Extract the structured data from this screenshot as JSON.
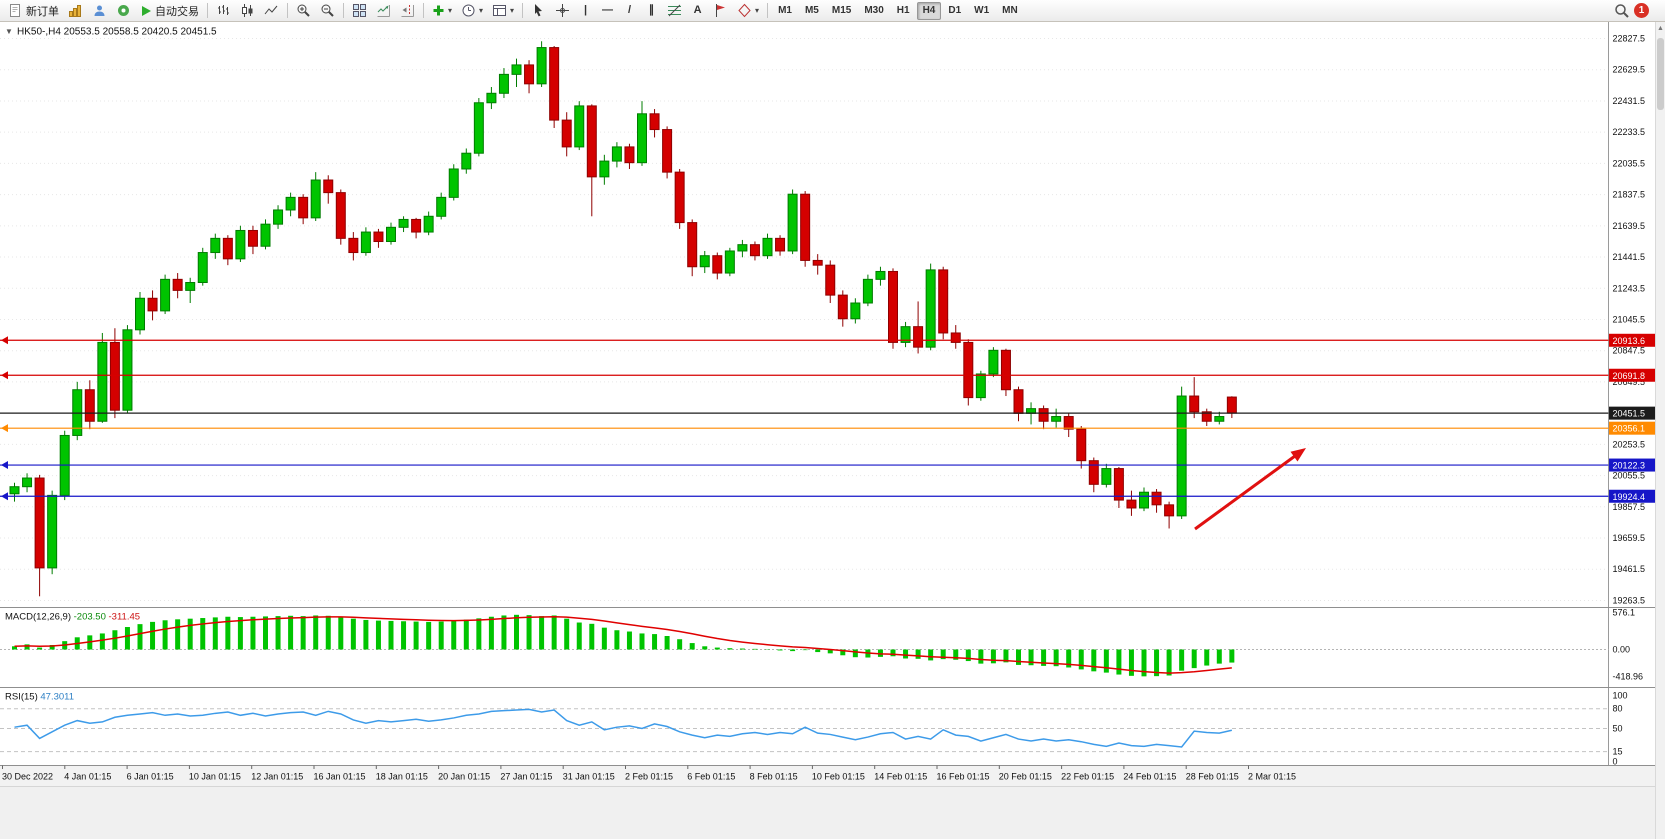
{
  "toolbar": {
    "new_order_label": "新订单",
    "auto_trading_label": "自动交易",
    "timeframes": [
      "M1",
      "M5",
      "M15",
      "M30",
      "H1",
      "H4",
      "D1",
      "W1",
      "MN"
    ],
    "active_timeframe": "H4",
    "notification_badge": "1"
  },
  "icons": {
    "dropdown_caret": "▾",
    "title_caret": "▼",
    "scroll_up_arrow": "▲",
    "vline_tool": "|",
    "hline_tool": "—",
    "trendline_tool": "/",
    "channel_tool": "∥",
    "text_tool": "A"
  },
  "chart": {
    "title_symbol": "HK50-,H4",
    "title_ohlc": "20553.5 20558.5 20420.5 20451.5",
    "levels": [
      {
        "price": 20913.6,
        "label": "20913.6",
        "color": "#d60000",
        "kind": "resistance-line"
      },
      {
        "price": 20691.8,
        "label": "20691.8",
        "color": "#d60000",
        "kind": "resistance-line"
      },
      {
        "price": 20451.5,
        "label": "20451.5",
        "color": "#1c1c1c",
        "kind": "current-price"
      },
      {
        "price": 20356.1,
        "label": "20356.1",
        "color": "#ff8a00",
        "kind": "support-line"
      },
      {
        "price": 20122.3,
        "label": "20122.3",
        "color": "#1616c8",
        "kind": "support-line"
      },
      {
        "price": 19924.4,
        "label": "19924.4",
        "color": "#1616c8",
        "kind": "support-line"
      }
    ]
  },
  "indicators": {
    "macd": {
      "name": "MACD(12,26,9)",
      "main_value": "-203.50",
      "signal_value": "-311.45",
      "axis_labels": [
        "576.1",
        "0.00",
        "-418.96"
      ]
    },
    "rsi": {
      "name": "RSI(15)",
      "value": "47.3011",
      "axis_labels": [
        "100",
        "80",
        "50",
        "15",
        "0"
      ],
      "guide_levels": [
        80,
        50,
        15
      ]
    }
  },
  "colors": {
    "bull": "#00c400",
    "bull_edge": "#007c00",
    "bear": "#d40000",
    "bear_edge": "#8f0000",
    "macd_hist": "#00c400",
    "macd_signal": "#e00000",
    "rsi_line": "#3d9be9",
    "grid": "#e7e7e7",
    "axis_text": "#111111",
    "annotation_arrow": "#e01010"
  },
  "chart_data": {
    "type": "candlestick",
    "symbol": "HK50-",
    "timeframe": "H4",
    "price_axis_ticks": [
      22827.5,
      22629.5,
      22431.5,
      22233.5,
      22035.5,
      21837.5,
      21639.5,
      21441.5,
      21243.5,
      21045.5,
      20847.5,
      20649.5,
      20451.5,
      20253.5,
      20055.5,
      19857.5,
      19659.5,
      19461.5,
      19263.5
    ],
    "time_labels": [
      "30 Dec 2022",
      "4 Jan 01:15",
      "6 Jan 01:15",
      "10 Jan 01:15",
      "12 Jan 01:15",
      "16 Jan 01:15",
      "18 Jan 01:15",
      "20 Jan 01:15",
      "27 Jan 01:15",
      "31 Jan 01:15",
      "2 Feb 01:15",
      "6 Feb 01:15",
      "8 Feb 01:15",
      "10 Feb 01:15",
      "14 Feb 01:15",
      "16 Feb 01:15",
      "20 Feb 01:15",
      "22 Feb 01:15",
      "24 Feb 01:15",
      "28 Feb 01:15",
      "2 Mar 01:15"
    ],
    "candles": [
      [
        19940,
        20010,
        19890,
        19985
      ],
      [
        19985,
        20070,
        19950,
        20040
      ],
      [
        20040,
        20060,
        19290,
        19470
      ],
      [
        19470,
        19960,
        19430,
        19930
      ],
      [
        19930,
        20340,
        19900,
        20310
      ],
      [
        20310,
        20650,
        20280,
        20600
      ],
      [
        20600,
        20660,
        20350,
        20400
      ],
      [
        20400,
        20960,
        20390,
        20900
      ],
      [
        20900,
        20990,
        20420,
        20470
      ],
      [
        20470,
        21010,
        20450,
        20980
      ],
      [
        20980,
        21220,
        20950,
        21180
      ],
      [
        21180,
        21230,
        21040,
        21100
      ],
      [
        21100,
        21330,
        21080,
        21300
      ],
      [
        21300,
        21340,
        21180,
        21230
      ],
      [
        21230,
        21310,
        21150,
        21280
      ],
      [
        21280,
        21500,
        21260,
        21470
      ],
      [
        21470,
        21590,
        21430,
        21560
      ],
      [
        21560,
        21580,
        21390,
        21430
      ],
      [
        21430,
        21640,
        21410,
        21610
      ],
      [
        21610,
        21640,
        21460,
        21510
      ],
      [
        21510,
        21680,
        21490,
        21650
      ],
      [
        21650,
        21770,
        21620,
        21740
      ],
      [
        21740,
        21850,
        21700,
        21820
      ],
      [
        21820,
        21840,
        21650,
        21690
      ],
      [
        21690,
        21980,
        21670,
        21930
      ],
      [
        21930,
        21960,
        21780,
        21850
      ],
      [
        21850,
        21870,
        21520,
        21560
      ],
      [
        21560,
        21600,
        21420,
        21470
      ],
      [
        21470,
        21630,
        21450,
        21600
      ],
      [
        21600,
        21620,
        21500,
        21540
      ],
      [
        21540,
        21660,
        21520,
        21630
      ],
      [
        21630,
        21700,
        21600,
        21680
      ],
      [
        21680,
        21690,
        21560,
        21600
      ],
      [
        21600,
        21730,
        21580,
        21700
      ],
      [
        21700,
        21850,
        21680,
        21820
      ],
      [
        21820,
        22030,
        21800,
        22000
      ],
      [
        22000,
        22130,
        21970,
        22100
      ],
      [
        22100,
        22450,
        22080,
        22420
      ],
      [
        22420,
        22520,
        22380,
        22480
      ],
      [
        22480,
        22640,
        22450,
        22600
      ],
      [
        22600,
        22700,
        22520,
        22660
      ],
      [
        22660,
        22690,
        22480,
        22540
      ],
      [
        22540,
        22810,
        22520,
        22770
      ],
      [
        22770,
        22780,
        22260,
        22310
      ],
      [
        22310,
        22360,
        22080,
        22140
      ],
      [
        22140,
        22430,
        22120,
        22400
      ],
      [
        22400,
        22410,
        21700,
        21950
      ],
      [
        21950,
        22090,
        21900,
        22050
      ],
      [
        22050,
        22170,
        22010,
        22140
      ],
      [
        22140,
        22160,
        22000,
        22040
      ],
      [
        22040,
        22430,
        22020,
        22350
      ],
      [
        22350,
        22380,
        22200,
        22250
      ],
      [
        22250,
        22270,
        21940,
        21980
      ],
      [
        21980,
        22000,
        21620,
        21660
      ],
      [
        21660,
        21680,
        21320,
        21380
      ],
      [
        21380,
        21480,
        21340,
        21450
      ],
      [
        21450,
        21470,
        21300,
        21340
      ],
      [
        21340,
        21500,
        21320,
        21480
      ],
      [
        21480,
        21550,
        21440,
        21520
      ],
      [
        21520,
        21540,
        21420,
        21450
      ],
      [
        21450,
        21590,
        21430,
        21560
      ],
      [
        21560,
        21580,
        21450,
        21480
      ],
      [
        21480,
        21870,
        21460,
        21840
      ],
      [
        21840,
        21860,
        21380,
        21420
      ],
      [
        21420,
        21460,
        21330,
        21390
      ],
      [
        21390,
        21420,
        21150,
        21200
      ],
      [
        21200,
        21230,
        21000,
        21050
      ],
      [
        21050,
        21180,
        21020,
        21150
      ],
      [
        21150,
        21330,
        21130,
        21300
      ],
      [
        21300,
        21380,
        21260,
        21350
      ],
      [
        21350,
        21370,
        20860,
        20900
      ],
      [
        20900,
        21030,
        20870,
        21000
      ],
      [
        21000,
        21160,
        20830,
        20870
      ],
      [
        20870,
        21400,
        20850,
        21360
      ],
      [
        21360,
        21380,
        20920,
        20960
      ],
      [
        20960,
        21010,
        20860,
        20900
      ],
      [
        20900,
        20920,
        20500,
        20550
      ],
      [
        20550,
        20720,
        20530,
        20700
      ],
      [
        20700,
        20870,
        20680,
        20850
      ],
      [
        20850,
        20860,
        20560,
        20600
      ],
      [
        20600,
        20620,
        20400,
        20450
      ],
      [
        20450,
        20520,
        20380,
        20480
      ],
      [
        20480,
        20500,
        20350,
        20400
      ],
      [
        20400,
        20480,
        20360,
        20430
      ],
      [
        20430,
        20450,
        20300,
        20350
      ],
      [
        20350,
        20370,
        20100,
        20150
      ],
      [
        20150,
        20170,
        19950,
        20000
      ],
      [
        20000,
        20130,
        19980,
        20100
      ],
      [
        20100,
        20110,
        19850,
        19900
      ],
      [
        19900,
        19960,
        19800,
        19850
      ],
      [
        19850,
        19980,
        19830,
        19950
      ],
      [
        19950,
        19970,
        19820,
        19870
      ],
      [
        19870,
        19890,
        19720,
        19800
      ],
      [
        19800,
        20620,
        19780,
        20560
      ],
      [
        20560,
        20680,
        20420,
        20460
      ],
      [
        20460,
        20480,
        20370,
        20400
      ],
      [
        20400,
        20460,
        20380,
        20430
      ],
      [
        20553.5,
        20558.5,
        20420.5,
        20451.5
      ]
    ],
    "macd_histogram": [
      50,
      80,
      30,
      70,
      130,
      190,
      220,
      250,
      300,
      350,
      395,
      430,
      455,
      470,
      480,
      490,
      500,
      510,
      505,
      510,
      515,
      520,
      525,
      520,
      530,
      525,
      505,
      480,
      460,
      450,
      445,
      440,
      435,
      430,
      435,
      445,
      465,
      485,
      510,
      530,
      540,
      535,
      520,
      530,
      480,
      420,
      400,
      340,
      300,
      280,
      250,
      240,
      210,
      160,
      100,
      50,
      30,
      20,
      15,
      10,
      -5,
      -15,
      -25,
      -10,
      -40,
      -60,
      -90,
      -120,
      -125,
      -115,
      -105,
      -140,
      -145,
      -170,
      -150,
      -160,
      -180,
      -220,
      -215,
      -200,
      -240,
      -245,
      -255,
      -260,
      -280,
      -310,
      -340,
      -360,
      -390,
      -410,
      -418,
      -415,
      -405,
      -330,
      -290,
      -250,
      -220,
      -203.5
    ],
    "rsi_values": [
      52,
      55,
      35,
      45,
      55,
      62,
      58,
      60,
      67,
      70,
      72,
      74,
      70,
      72,
      69,
      70,
      73,
      75,
      70,
      73,
      69,
      72,
      74,
      75,
      70,
      76,
      72,
      63,
      58,
      62,
      60,
      62,
      64,
      61,
      63,
      66,
      70,
      72,
      76,
      77,
      78,
      79,
      75,
      78,
      62,
      55,
      60,
      48,
      52,
      54,
      50,
      57,
      53,
      45,
      40,
      36,
      40,
      38,
      42,
      44,
      41,
      44,
      42,
      52,
      43,
      41,
      37,
      33,
      37,
      42,
      44,
      34,
      38,
      34,
      48,
      40,
      38,
      31,
      36,
      41,
      34,
      31,
      34,
      31,
      33,
      30,
      26,
      23,
      28,
      24,
      23,
      26,
      24,
      22,
      46,
      44,
      43,
      47.3
    ]
  }
}
